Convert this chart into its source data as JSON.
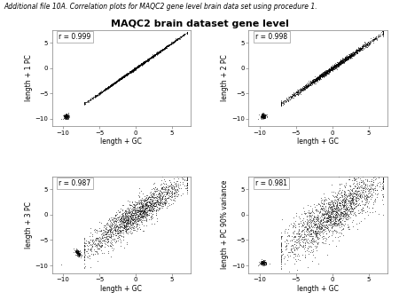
{
  "title": "MAQC2 brain dataset gene level",
  "suptitle": "Additional file 10A. Correlation plots for MAQC2 gene level brain data set using procedure 1.",
  "panels": [
    {
      "r": 0.999,
      "ylabel": "length + 1 PC",
      "xlabel": "length + GC",
      "spread": 0.12
    },
    {
      "r": 0.998,
      "ylabel": "length + 2 PC",
      "xlabel": "length + GC",
      "spread": 0.18
    },
    {
      "r": 0.987,
      "ylabel": "length + 3 PC",
      "xlabel": "length + GC",
      "spread": 0.45
    },
    {
      "r": 0.981,
      "ylabel": "length + PC 90% variance",
      "xlabel": "length + GC",
      "spread": 0.55
    }
  ],
  "xlim": [
    -11.5,
    7.5
  ],
  "ylim": [
    -11.5,
    7.5
  ],
  "xticks": [
    -10,
    -5,
    0,
    5
  ],
  "yticks": [
    -10,
    -5,
    0,
    5
  ],
  "n_points": 2000,
  "seed": 42
}
